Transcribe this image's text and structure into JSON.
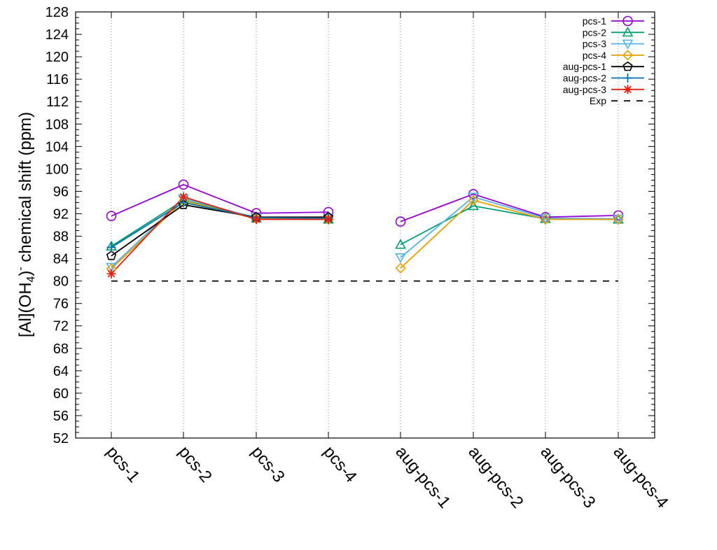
{
  "chart_data": {
    "type": "line",
    "title": "",
    "xlabel": "",
    "ylabel": {
      "prefix": "[Al](OH",
      "subscript": "4",
      "close": ")",
      "superscript": "-",
      "suffix": " chemical shift (ppm)"
    },
    "categories": [
      "pcs-1",
      "pcs-2",
      "pcs-3",
      "pcs-4",
      "aug-pcs-1",
      "aug-pcs-2",
      "aug-pcs-3",
      "aug-pcs-4"
    ],
    "ylim": [
      52,
      128
    ],
    "yticks": [
      52,
      56,
      60,
      64,
      68,
      72,
      76,
      80,
      84,
      88,
      92,
      96,
      100,
      104,
      108,
      112,
      116,
      120,
      124,
      128
    ],
    "grid": "x",
    "legend_position": "top-right",
    "series": [
      {
        "name": "pcs-1",
        "color": "#9400d3",
        "marker": "circle",
        "segments": [
          {
            "start": 0,
            "values": [
              91.6,
              97.2,
              92.1,
              92.3
            ]
          },
          {
            "start": 4,
            "values": [
              90.6,
              95.5,
              91.4,
              91.7
            ]
          }
        ]
      },
      {
        "name": "pcs-2",
        "color": "#009e73",
        "marker": "triangle-up",
        "segments": [
          {
            "start": 0,
            "values": [
              86.2,
              94.4,
              91.2,
              91.0
            ]
          },
          {
            "start": 4,
            "values": [
              86.5,
              93.4,
              91.1,
              91.0
            ]
          }
        ]
      },
      {
        "name": "pcs-3",
        "color": "#56b4e9",
        "marker": "triangle-down",
        "segments": [
          {
            "start": 0,
            "values": [
              82.5,
              94.7,
              91.3,
              91.2
            ]
          },
          {
            "start": 4,
            "values": [
              84.2,
              95.0,
              91.2,
              91.1
            ]
          }
        ]
      },
      {
        "name": "pcs-4",
        "color": "#e69f00",
        "marker": "diamond",
        "segments": [
          {
            "start": 0,
            "values": [
              82.2,
              94.3,
              91.1,
              91.0
            ]
          },
          {
            "start": 4,
            "values": [
              82.3,
              94.4,
              91.0,
              91.0
            ]
          }
        ]
      },
      {
        "name": "aug-pcs-1",
        "color": "#000000",
        "marker": "pentagon",
        "segments": [
          {
            "start": 0,
            "values": [
              84.5,
              93.6,
              91.4,
              91.4
            ]
          }
        ]
      },
      {
        "name": "aug-pcs-2",
        "color": "#0072b2",
        "marker": "plus",
        "segments": [
          {
            "start": 0,
            "values": [
              86.0,
              94.0,
              91.3,
              91.2
            ]
          }
        ]
      },
      {
        "name": "aug-pcs-3",
        "color": "#e51e10",
        "marker": "star",
        "segments": [
          {
            "start": 0,
            "values": [
              81.3,
              95.0,
              91.0,
              91.0
            ]
          }
        ]
      },
      {
        "name": "Exp",
        "color": "#000000",
        "marker": "dashed",
        "segments": [
          {
            "start": 0,
            "values": [
              80,
              80,
              80,
              80,
              80,
              80,
              80,
              80
            ]
          }
        ]
      }
    ]
  }
}
